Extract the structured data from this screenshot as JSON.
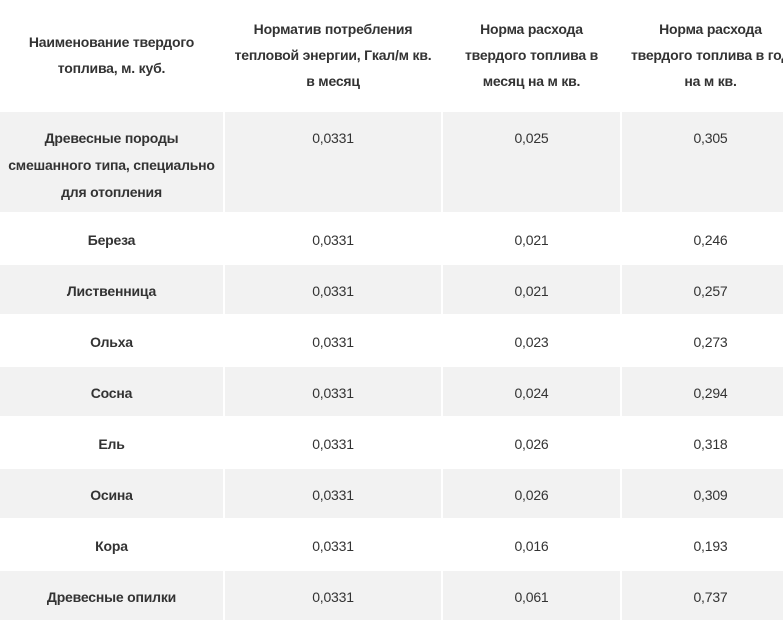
{
  "headers": [
    "Наименование твердого топлива, м. куб.",
    "Норматив потребления тепловой энергии, Гкал/м кв. в месяц",
    "Норма расхода твердого топлива в месяц на м кв.",
    "Норма расхода твердого топлива в год на м кв."
  ],
  "rows": [
    [
      "Древесные породы смешанного типа, специально для отопления",
      "0,0331",
      "0,025",
      "0,305"
    ],
    [
      "Береза",
      "0,0331",
      "0,021",
      "0,246"
    ],
    [
      "Лиственница",
      "0,0331",
      "0,021",
      "0,257"
    ],
    [
      "Ольха",
      "0,0331",
      "0,023",
      "0,273"
    ],
    [
      "Сосна",
      "0,0331",
      "0,024",
      "0,294"
    ],
    [
      "Ель",
      "0,0331",
      "0,026",
      "0,318"
    ],
    [
      "Осина",
      "0,0331",
      "0,026",
      "0,309"
    ],
    [
      "Кора",
      "0,0331",
      "0,016",
      "0,193"
    ],
    [
      "Древесные опилки",
      "0,0331",
      "0,061",
      "0,737"
    ]
  ]
}
